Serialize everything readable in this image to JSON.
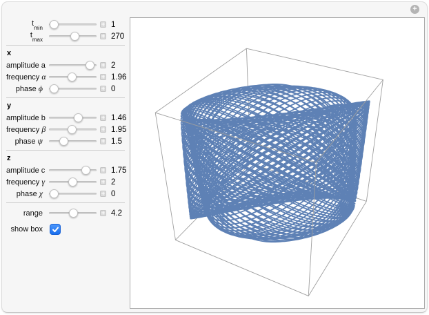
{
  "window": {
    "expand_icon": "plus-circle-icon",
    "expand_glyph": "+"
  },
  "controls": {
    "sections": [
      {
        "rows": [
          {
            "id": "t-min",
            "base": "t",
            "sub": "min",
            "value": "1",
            "pct": 0.02
          },
          {
            "id": "t-max",
            "base": "t",
            "sub": "max",
            "value": "270",
            "pct": 0.55
          }
        ]
      },
      {
        "heading": "x",
        "rows": [
          {
            "id": "amplitude-a",
            "label": "amplitude a",
            "value": "2",
            "pct": 0.95
          },
          {
            "id": "frequency-alpha",
            "label": "frequency",
            "sym": "α",
            "value": "1.96",
            "pct": 0.49
          },
          {
            "id": "phase-phi",
            "label": "phase",
            "sym": "ϕ",
            "value": "0",
            "pct": 0.02
          }
        ]
      },
      {
        "heading": "y",
        "rows": [
          {
            "id": "amplitude-b",
            "label": "amplitude b",
            "value": "1.46",
            "pct": 0.65
          },
          {
            "id": "frequency-beta",
            "label": "frequency",
            "sym": "β",
            "value": "1.95",
            "pct": 0.48
          },
          {
            "id": "phase-psi",
            "label": "phase",
            "sym": "ψ",
            "value": "1.5",
            "pct": 0.26
          }
        ]
      },
      {
        "heading": "z",
        "rows": [
          {
            "id": "amplitude-c",
            "label": "amplitude c",
            "value": "1.75",
            "pct": 0.84
          },
          {
            "id": "frequency-gamma",
            "label": "frequency",
            "sym": "γ",
            "value": "2",
            "pct": 0.5
          },
          {
            "id": "phase-chi",
            "label": "phase",
            "sym": "χ",
            "value": "0",
            "pct": 0.02
          }
        ]
      },
      {
        "first_row_gap": true,
        "rows": [
          {
            "id": "range",
            "label": "range",
            "value": "4.2",
            "pct": 0.52
          }
        ],
        "checkbox": {
          "id": "show-box",
          "label": "show box",
          "checked": true
        }
      }
    ]
  },
  "plot": {
    "type": "parametric3d",
    "description": "3D Lissajous figure: {a sin(αt+ϕ), b sin(βt+ψ), c sin(γt+χ)}",
    "curve_color": "#5E81B5",
    "box_color": "#9f9f9f",
    "t_min": 1,
    "t_max": 270,
    "x": {
      "amplitude": 2,
      "frequency": 1.96,
      "phase": 0
    },
    "y": {
      "amplitude": 1.46,
      "frequency": 1.95,
      "phase": 1.5
    },
    "z": {
      "amplitude": 1.75,
      "frequency": 2,
      "phase": 0
    },
    "range": 4.2,
    "show_box": true,
    "view_point": [
      1.3,
      -2.4,
      2
    ]
  }
}
